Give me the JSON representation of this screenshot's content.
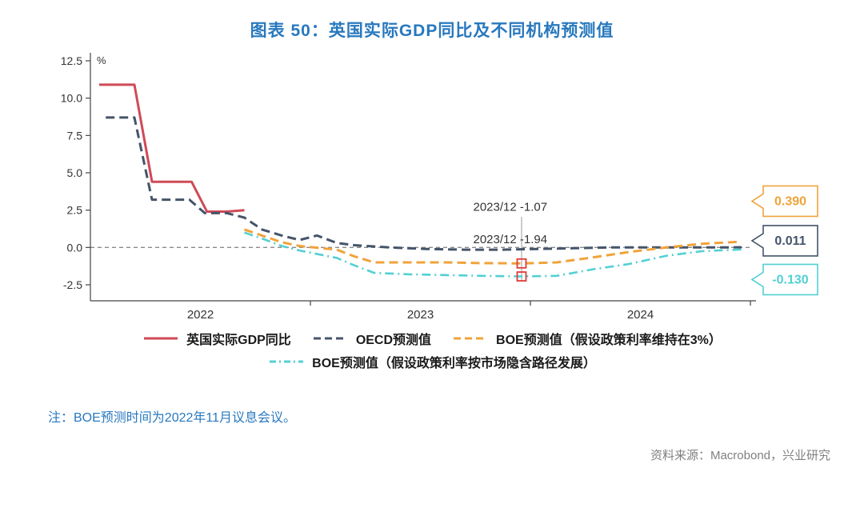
{
  "note": "注：BOE预测时间为2022年11月议息会议。",
  "source": "资料来源：Macrobond，兴业研究",
  "chart_data": {
    "type": "line",
    "title": "图表 50：英国实际GDP同比及不同机构预测值",
    "ylabel": "%",
    "ylim": [
      -2.5,
      12.5
    ],
    "yticks": [
      12.5,
      10.0,
      7.5,
      5.0,
      2.5,
      0.0,
      -2.5
    ],
    "xlim": [
      2022.0,
      2025.0
    ],
    "xticks": [
      {
        "label": "2022",
        "t": 2022.5
      },
      {
        "label": "2023",
        "t": 2023.5
      },
      {
        "label": "2024",
        "t": 2024.5
      }
    ],
    "x_boundaries": [
      2023.0,
      2024.0,
      2025.0
    ],
    "grid": "zero-line-only",
    "legend_position": "bottom",
    "series": [
      {
        "name": "英国实际GDP同比",
        "color": "#cf4a57",
        "style": "solid",
        "points": [
          [
            2022.04,
            10.9
          ],
          [
            2022.2,
            10.9
          ],
          [
            2022.28,
            4.4
          ],
          [
            2022.46,
            4.4
          ],
          [
            2022.53,
            2.4
          ],
          [
            2022.62,
            2.4
          ],
          [
            2022.7,
            2.5
          ]
        ]
      },
      {
        "name": "OECD预测值",
        "color": "#44546a",
        "style": "dashed",
        "points": [
          [
            2022.07,
            8.7
          ],
          [
            2022.2,
            8.7
          ],
          [
            2022.28,
            3.2
          ],
          [
            2022.45,
            3.2
          ],
          [
            2022.52,
            2.3
          ],
          [
            2022.62,
            2.3
          ],
          [
            2022.7,
            2.0
          ],
          [
            2022.78,
            1.2
          ],
          [
            2022.87,
            0.8
          ],
          [
            2022.95,
            0.5
          ],
          [
            2023.03,
            0.8
          ],
          [
            2023.12,
            0.3
          ],
          [
            2023.2,
            0.15
          ],
          [
            2023.36,
            0.0
          ],
          [
            2023.53,
            -0.1
          ],
          [
            2023.7,
            -0.15
          ],
          [
            2023.87,
            -0.15
          ],
          [
            2024.03,
            -0.1
          ],
          [
            2024.2,
            -0.05
          ],
          [
            2024.36,
            0.0
          ],
          [
            2024.53,
            0.0
          ],
          [
            2024.7,
            0.0
          ],
          [
            2024.87,
            0.0
          ],
          [
            2024.96,
            0.011
          ]
        ]
      },
      {
        "name": "BOE预测值（假设政策利率维持在3%）",
        "color": "#f0a33a",
        "style": "dashed",
        "points": [
          [
            2022.7,
            1.2
          ],
          [
            2022.78,
            0.8
          ],
          [
            2022.87,
            0.35
          ],
          [
            2022.95,
            0.1
          ],
          [
            2023.12,
            -0.15
          ],
          [
            2023.2,
            -0.6
          ],
          [
            2023.29,
            -1.0
          ],
          [
            2023.45,
            -1.0
          ],
          [
            2023.62,
            -1.0
          ],
          [
            2023.78,
            -1.05
          ],
          [
            2023.96,
            -1.07
          ],
          [
            2024.12,
            -1.0
          ],
          [
            2024.29,
            -0.65
          ],
          [
            2024.45,
            -0.3
          ],
          [
            2024.62,
            0.0
          ],
          [
            2024.78,
            0.25
          ],
          [
            2024.96,
            0.39
          ]
        ]
      },
      {
        "name": "BOE预测值（假设政策利率按市场隐含路径发展）",
        "color": "#52d0d4",
        "style": "dashdot",
        "points": [
          [
            2022.7,
            1.0
          ],
          [
            2022.78,
            0.6
          ],
          [
            2022.87,
            0.1
          ],
          [
            2022.95,
            -0.2
          ],
          [
            2023.12,
            -0.7
          ],
          [
            2023.2,
            -1.2
          ],
          [
            2023.29,
            -1.7
          ],
          [
            2023.45,
            -1.8
          ],
          [
            2023.62,
            -1.85
          ],
          [
            2023.78,
            -1.9
          ],
          [
            2023.96,
            -1.94
          ],
          [
            2024.12,
            -1.9
          ],
          [
            2024.29,
            -1.45
          ],
          [
            2024.45,
            -1.1
          ],
          [
            2024.62,
            -0.55
          ],
          [
            2024.78,
            -0.25
          ],
          [
            2024.96,
            -0.13
          ]
        ]
      }
    ],
    "annotations": [
      {
        "text": "2023/12 -1.07",
        "t": 2023.74,
        "value": 2.45
      },
      {
        "text": "2023/12 -1.94",
        "t": 2023.74,
        "value": 0.28
      }
    ],
    "markers": [
      {
        "t": 2023.96,
        "value": -1.07,
        "color": "#e03a3a"
      },
      {
        "t": 2023.96,
        "value": -1.94,
        "color": "#e03a3a"
      }
    ],
    "annotation_line": {
      "t": 2023.96,
      "from": 2.05,
      "to": -2.28
    },
    "end_labels": [
      {
        "text": "0.390",
        "color": "#f0a33a",
        "value": 3.1
      },
      {
        "text": "0.011",
        "color": "#44546a",
        "value": 0.45
      },
      {
        "text": "-0.130",
        "color": "#52d0d4",
        "value": -2.15
      }
    ]
  }
}
